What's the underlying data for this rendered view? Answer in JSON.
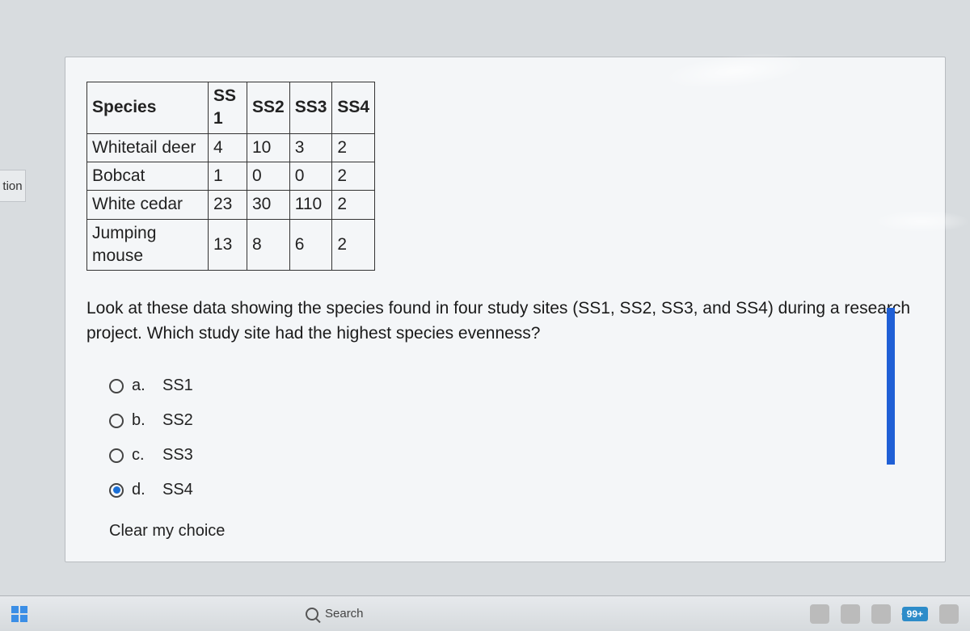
{
  "left_fragment": "tion",
  "table": {
    "headers": [
      "Species",
      "SS 1",
      "SS2",
      "SS3",
      "SS4"
    ],
    "rows": [
      [
        "Whitetail deer",
        "4",
        "10",
        "3",
        "2"
      ],
      [
        "Bobcat",
        "1",
        "0",
        "0",
        "2"
      ],
      [
        "White cedar",
        "23",
        "30",
        "110",
        "2"
      ],
      [
        "Jumping mouse",
        "13",
        "8",
        "6",
        "2"
      ]
    ]
  },
  "question": "Look at these data showing the species found in four study sites (SS1, SS2, SS3, and SS4) during a research project. Which study site had the highest species evenness?",
  "options": [
    {
      "letter": "a.",
      "label": "SS1",
      "selected": false
    },
    {
      "letter": "b.",
      "label": "SS2",
      "selected": false
    },
    {
      "letter": "c.",
      "label": "SS3",
      "selected": false
    },
    {
      "letter": "d.",
      "label": "SS4",
      "selected": true
    }
  ],
  "clear_choice": "Clear my choice",
  "taskbar": {
    "search_placeholder": "Search",
    "badge": "99+"
  },
  "colors": {
    "card_bg": "#f4f6f8",
    "page_bg": "#d8dcdf",
    "accent_blue": "#1f5fd6",
    "radio_selected": "#1a6fd6",
    "badge_bg": "#2d8cc9"
  }
}
